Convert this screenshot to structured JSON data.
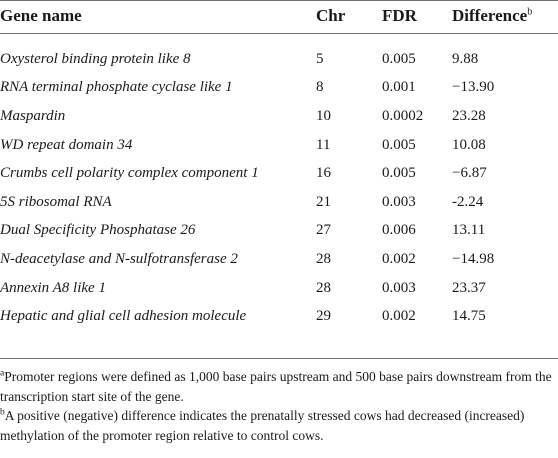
{
  "table": {
    "headers": {
      "gene": "Gene name",
      "chr": "Chr",
      "fdr": "FDR",
      "difference": "Difference",
      "difference_sup": "b"
    },
    "rows": [
      {
        "gene": "Oxysterol binding protein like 8",
        "chr": "5",
        "fdr": "0.005",
        "difference": "9.88"
      },
      {
        "gene": "RNA terminal phosphate cyclase like 1",
        "chr": "8",
        "fdr": "0.001",
        "difference": "−13.90"
      },
      {
        "gene": "Maspardin",
        "chr": "10",
        "fdr": "0.0002",
        "difference": "23.28"
      },
      {
        "gene": "WD repeat domain 34",
        "chr": "11",
        "fdr": "0.005",
        "difference": "10.08"
      },
      {
        "gene": "Crumbs cell polarity complex component 1",
        "chr": "16",
        "fdr": "0.005",
        "difference": "−6.87"
      },
      {
        "gene": "5S ribosomal RNA",
        "chr": "21",
        "fdr": "0.003",
        "difference": "-2.24"
      },
      {
        "gene": "Dual Specificity Phosphatase 26",
        "chr": "27",
        "fdr": "0.006",
        "difference": "13.11"
      },
      {
        "gene": "N-deacetylase and N-sulfotransferase 2",
        "chr": "28",
        "fdr": "0.002",
        "difference": "−14.98"
      },
      {
        "gene": "Annexin A8 like 1",
        "chr": "28",
        "fdr": "0.003",
        "difference": "23.37"
      },
      {
        "gene": "Hepatic and glial cell adhesion molecule",
        "chr": "29",
        "fdr": "0.002",
        "difference": "14.75"
      }
    ]
  },
  "footnotes": [
    {
      "mark": "a",
      "text": "Promoter regions were defined as 1,000 base pairs upstream and 500 base pairs downstream from the transcription start site of the gene."
    },
    {
      "mark": "b",
      "text": "A positive (negative) difference indicates the prenatally stressed cows had decreased (increased) methylation of the promoter region relative to control cows."
    }
  ]
}
